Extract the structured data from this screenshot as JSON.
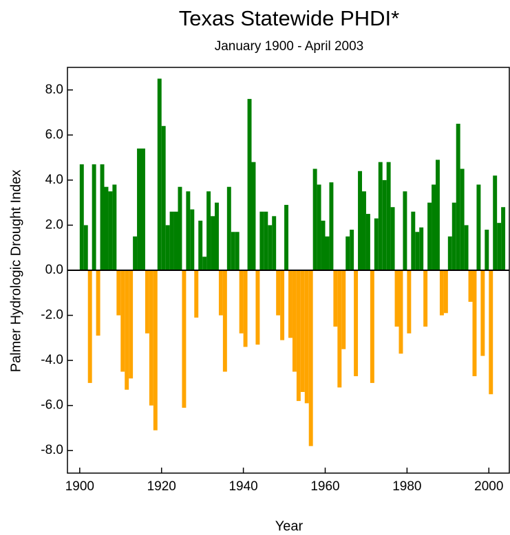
{
  "chart_data": {
    "type": "bar",
    "title": "Texas Statewide PHDI*",
    "subtitle": "January 1900 - April 2003",
    "x_label": "Year",
    "y_label": "Palmer Hydrologic Drought Index",
    "x": [
      1900,
      1901,
      1902,
      1903,
      1904,
      1905,
      1906,
      1907,
      1908,
      1909,
      1910,
      1911,
      1912,
      1913,
      1914,
      1915,
      1916,
      1917,
      1918,
      1919,
      1920,
      1921,
      1922,
      1923,
      1924,
      1925,
      1926,
      1927,
      1928,
      1929,
      1930,
      1931,
      1932,
      1933,
      1934,
      1935,
      1936,
      1937,
      1938,
      1939,
      1940,
      1941,
      1942,
      1943,
      1944,
      1945,
      1946,
      1947,
      1948,
      1949,
      1950,
      1951,
      1952,
      1953,
      1954,
      1955,
      1956,
      1957,
      1958,
      1959,
      1960,
      1961,
      1962,
      1963,
      1964,
      1965,
      1966,
      1967,
      1968,
      1969,
      1970,
      1971,
      1972,
      1973,
      1974,
      1975,
      1976,
      1977,
      1978,
      1979,
      1980,
      1981,
      1982,
      1983,
      1984,
      1985,
      1986,
      1987,
      1988,
      1989,
      1990,
      1991,
      1992,
      1993,
      1994,
      1995,
      1996,
      1997,
      1998,
      1999,
      2000,
      2001,
      2002,
      2003
    ],
    "values": [
      4.7,
      2.0,
      -5.0,
      4.7,
      -2.9,
      4.7,
      3.7,
      3.5,
      3.8,
      -2.0,
      -4.5,
      -5.3,
      -4.8,
      1.5,
      5.4,
      5.4,
      -2.8,
      -6.0,
      -7.1,
      8.5,
      6.4,
      2.0,
      2.6,
      2.6,
      3.7,
      -6.1,
      3.5,
      2.7,
      -2.1,
      2.2,
      0.6,
      3.5,
      2.4,
      3.0,
      -2.0,
      -4.5,
      3.7,
      1.7,
      1.7,
      -2.8,
      -3.4,
      7.6,
      4.8,
      -3.3,
      2.6,
      2.6,
      2.0,
      2.4,
      -2.0,
      -3.1,
      2.9,
      -3.0,
      -4.5,
      -5.8,
      -5.4,
      -5.9,
      -7.8,
      4.5,
      3.8,
      2.2,
      1.5,
      3.9,
      -2.5,
      -5.2,
      -3.5,
      1.5,
      1.8,
      -4.7,
      4.4,
      3.5,
      2.5,
      -5.0,
      2.3,
      4.8,
      4.0,
      4.8,
      2.8,
      -2.5,
      -3.7,
      3.5,
      -2.8,
      2.6,
      1.7,
      1.9,
      -2.5,
      3.0,
      3.8,
      4.9,
      -2.0,
      -1.9,
      1.5,
      3.0,
      6.5,
      4.5,
      2.0,
      -1.4,
      -4.7,
      3.8,
      -3.8,
      1.8,
      -5.5,
      4.2,
      2.1,
      2.8
    ],
    "positive_color": "#008000",
    "negative_color": "#ffa500",
    "xlim": [
      1897,
      2005
    ],
    "ylim": [
      -9,
      9
    ],
    "xticks": [
      1900,
      1920,
      1940,
      1960,
      1980,
      2000
    ],
    "yticks": [
      {
        "value": -8,
        "label": "-8.0"
      },
      {
        "value": -6,
        "label": "-6.0"
      },
      {
        "value": -4,
        "label": "-4.0"
      },
      {
        "value": -2,
        "label": "-2.0"
      },
      {
        "value": 0,
        "label": "0.0"
      },
      {
        "value": 2,
        "label": "2.0"
      },
      {
        "value": 4,
        "label": "4.0"
      },
      {
        "value": 6,
        "label": "6.0"
      },
      {
        "value": 8,
        "label": "8.0"
      }
    ]
  }
}
